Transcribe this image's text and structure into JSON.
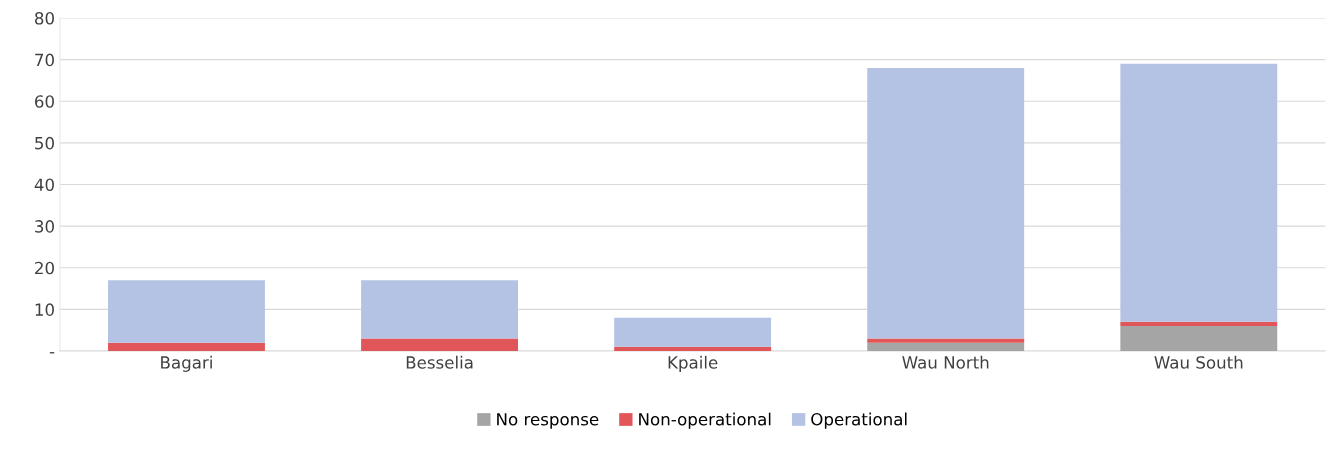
{
  "chart_data": {
    "type": "bar",
    "stacked": true,
    "categories": [
      "Bagari",
      "Besselia",
      "Kpaile",
      "Wau North",
      "Wau South"
    ],
    "series": [
      {
        "name": "No response",
        "color": "#a5a5a5",
        "values": [
          0,
          0,
          0,
          2,
          6
        ]
      },
      {
        "name": "Non-operational",
        "color": "#e15759",
        "values": [
          2,
          3,
          1,
          1,
          1
        ]
      },
      {
        "name": "Operational",
        "color": "#b4c3e3",
        "values": [
          15,
          14,
          7,
          65,
          62
        ]
      }
    ],
    "ylim": [
      0,
      80
    ],
    "yticks": [
      {
        "value": 0,
        "label": "-"
      },
      10,
      20,
      30,
      40,
      50,
      60,
      70,
      80
    ],
    "grid": "y",
    "legend": "bottom"
  }
}
